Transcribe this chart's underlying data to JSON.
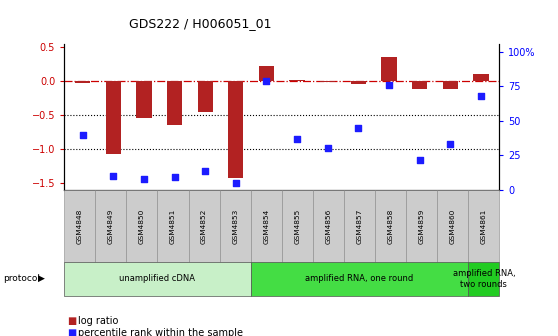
{
  "title": "GDS222 / H006051_01",
  "samples": [
    "GSM4848",
    "GSM4849",
    "GSM4850",
    "GSM4851",
    "GSM4852",
    "GSM4853",
    "GSM4854",
    "GSM4855",
    "GSM4856",
    "GSM4857",
    "GSM4858",
    "GSM4859",
    "GSM4860",
    "GSM4861"
  ],
  "log_ratio": [
    -0.03,
    -1.08,
    -0.55,
    -0.65,
    -0.45,
    -1.43,
    0.22,
    0.02,
    -0.02,
    -0.04,
    0.35,
    -0.12,
    -0.12,
    0.1
  ],
  "percentile": [
    40,
    10,
    8,
    9,
    14,
    5,
    79,
    37,
    30,
    45,
    76,
    22,
    33,
    68
  ],
  "ylim_left": [
    -1.6,
    0.55
  ],
  "ylim_right": [
    0,
    106
  ],
  "yticks_left": [
    -1.5,
    -1.0,
    -0.5,
    0.0,
    0.5
  ],
  "yticks_right": [
    0,
    25,
    50,
    75,
    100
  ],
  "ytick_labels_right": [
    "0",
    "25",
    "50",
    "75",
    "100%"
  ],
  "bar_color": "#b22222",
  "dot_color": "#1c1cff",
  "zero_line_color": "#cc0000",
  "dotted_line_color": "#000000",
  "protocol_groups": [
    {
      "label": "unamplified cDNA",
      "start": 0,
      "end": 6,
      "color": "#c8f0c8"
    },
    {
      "label": "amplified RNA, one round",
      "start": 6,
      "end": 13,
      "color": "#44dd44"
    },
    {
      "label": "amplified RNA,\ntwo rounds",
      "start": 13,
      "end": 14,
      "color": "#22cc22"
    }
  ],
  "legend_bar_label": "log ratio",
  "legend_dot_label": "percentile rank within the sample",
  "protocol_label": "protocol",
  "background_color": "#ffffff",
  "grid_dotted_values": [
    -0.5,
    -1.0
  ],
  "bar_width": 0.5,
  "dot_size": 25
}
